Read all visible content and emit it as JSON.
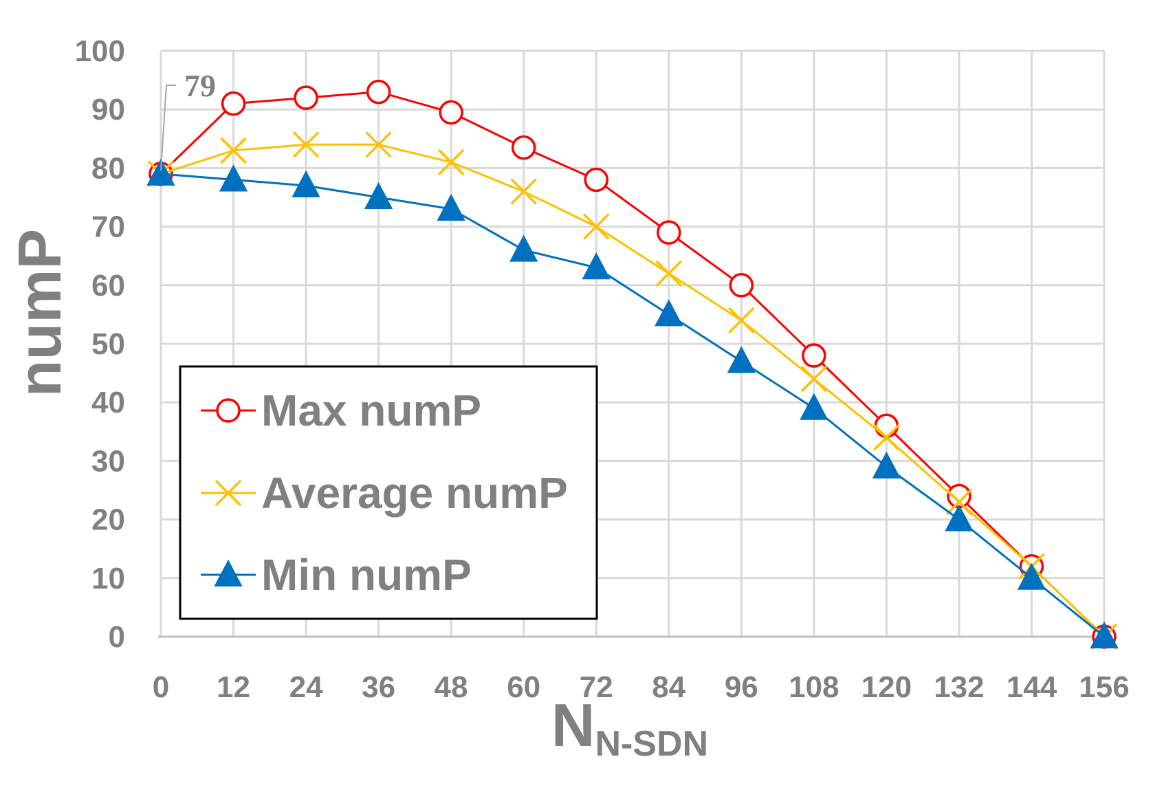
{
  "chart_data": {
    "type": "line",
    "title": "",
    "xlabel": "N",
    "xlabel_subscript": "N-SDN",
    "ylabel": "numP",
    "x": [
      0,
      12,
      24,
      36,
      48,
      60,
      72,
      84,
      96,
      108,
      120,
      132,
      144,
      156
    ],
    "x_tick_labels": [
      "0",
      "12",
      "24",
      "36",
      "48",
      "60",
      "72",
      "84",
      "96",
      "108",
      "120",
      "132",
      "144",
      "156"
    ],
    "ylim": [
      0,
      100
    ],
    "y_tick_labels": [
      "0",
      "10",
      "20",
      "30",
      "40",
      "50",
      "60",
      "70",
      "80",
      "90",
      "100"
    ],
    "grid": true,
    "legend_position": "bottom-left",
    "series": [
      {
        "name": "Max numP",
        "color": "#ff0000",
        "marker": "circle",
        "values": [
          79,
          91,
          92,
          93,
          89.5,
          83.5,
          78,
          69,
          60,
          48,
          36,
          24,
          12,
          0
        ]
      },
      {
        "name": "Average numP",
        "color": "#ffc000",
        "marker": "x",
        "values": [
          79,
          83,
          84,
          84,
          81,
          76,
          70,
          62,
          54,
          44,
          34,
          23,
          12,
          0
        ]
      },
      {
        "name": "Min numP",
        "color": "#0070c0",
        "marker": "triangle",
        "values": [
          79,
          78,
          77,
          75,
          73,
          66,
          63,
          55,
          47,
          39,
          29,
          20,
          10,
          0
        ]
      }
    ],
    "annotations": [
      {
        "text": "79",
        "x": 0,
        "y": 79
      }
    ]
  }
}
